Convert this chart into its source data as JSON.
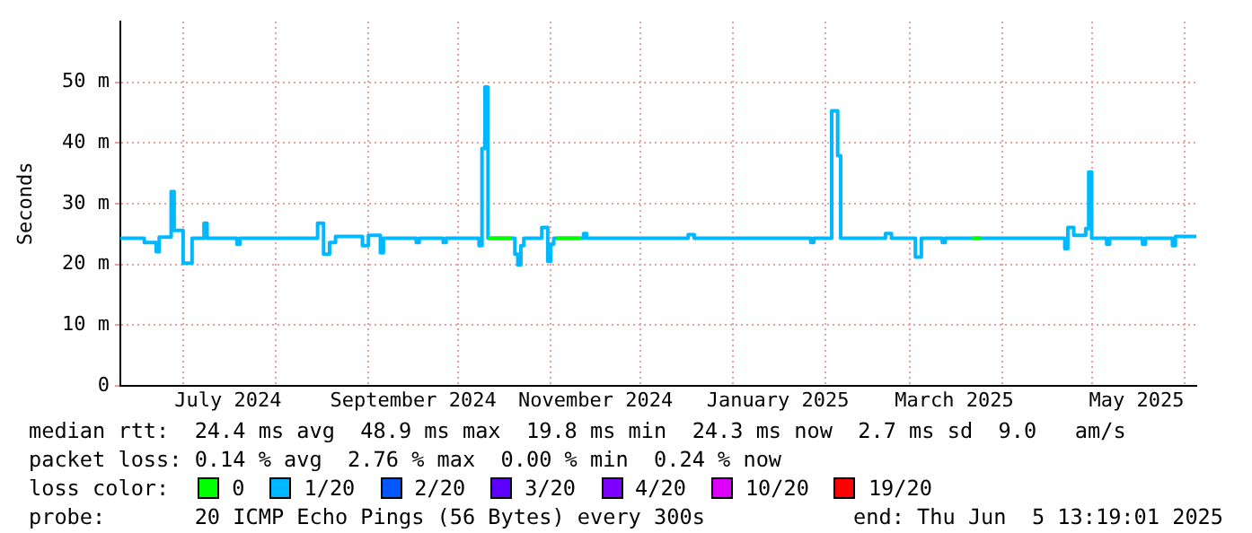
{
  "chart_data": {
    "type": "step",
    "ylabel": "Seconds",
    "legend_title": "loss color:",
    "legend": "bottom",
    "grid": true,
    "xlim": [
      "2024-06-10",
      "2025-06-05"
    ],
    "xticks": [
      {
        "value": "2024-07-01",
        "label": null
      },
      {
        "value": "2024-07-16",
        "label": "July 2024"
      },
      {
        "value": "2024-08-01",
        "label": null
      },
      {
        "value": "2024-09-01",
        "label": null
      },
      {
        "value": "2024-09-16",
        "label": "September 2024"
      },
      {
        "value": "2024-10-01",
        "label": null
      },
      {
        "value": "2024-11-01",
        "label": null
      },
      {
        "value": "2024-11-16",
        "label": "November 2024"
      },
      {
        "value": "2024-12-01",
        "label": null
      },
      {
        "value": "2025-01-01",
        "label": null
      },
      {
        "value": "2025-01-16",
        "label": "January 2025"
      },
      {
        "value": "2025-02-01",
        "label": null
      },
      {
        "value": "2025-03-01",
        "label": null
      },
      {
        "value": "2025-03-16",
        "label": "March 2025"
      },
      {
        "value": "2025-04-01",
        "label": null
      },
      {
        "value": "2025-05-01",
        "label": null
      },
      {
        "value": "2025-05-16",
        "label": "May 2025"
      },
      {
        "value": "2025-06-01",
        "label": null
      }
    ],
    "ylim": [
      0,
      60
    ],
    "yticks": [
      0,
      {
        "value": 10,
        "label": "10 m"
      },
      {
        "value": 20,
        "label": "20 m"
      },
      {
        "value": 30,
        "label": "30 m"
      },
      {
        "value": 40,
        "label": "40 m"
      },
      {
        "value": 50,
        "label": "50 m"
      }
    ],
    "x": [
      "2024-06-10",
      "2024-06-18",
      "2024-06-22",
      "2024-06-23",
      "2024-06-27",
      "2024-06-28",
      "2024-07-01",
      "2024-07-04",
      "2024-07-08",
      "2024-07-09",
      "2024-07-19",
      "2024-07-20",
      "2024-08-15",
      "2024-08-17",
      "2024-08-19",
      "2024-08-21",
      "2024-08-30",
      "2024-09-01",
      "2024-09-05",
      "2024-09-06",
      "2024-09-17",
      "2024-09-18",
      "2024-09-26",
      "2024-09-27",
      "2024-10-08",
      "2024-10-09",
      "2024-10-10",
      "2024-10-11",
      "2024-10-20",
      "2024-10-21",
      "2024-10-22",
      "2024-10-23",
      "2024-10-29",
      "2024-10-31",
      "2024-11-01",
      "2024-11-02",
      "2024-11-12",
      "2024-11-13",
      "2024-12-17",
      "2024-12-19",
      "2025-01-27",
      "2025-01-28",
      "2025-02-03",
      "2025-02-05",
      "2025-02-06",
      "2025-02-21",
      "2025-02-23",
      "2025-03-03",
      "2025-03-05",
      "2025-03-12",
      "2025-03-13",
      "2025-04-22",
      "2025-04-23",
      "2025-04-25",
      "2025-04-29",
      "2025-04-30",
      "2025-05-01",
      "2025-05-06",
      "2025-05-07",
      "2025-05-18",
      "2025-05-19",
      "2025-05-28",
      "2025-05-29",
      "2025-06-05"
    ],
    "series": [
      {
        "name": "0",
        "color": "#00ff00",
        "x": [
          "2024-10-11",
          "2024-10-19",
          "2024-10-27",
          "2024-11-03",
          "2024-11-11",
          "2025-01-10",
          "2025-03-22",
          "2025-03-25"
        ],
        "values": [
          24.3,
          24.3,
          null,
          24.3,
          24.3,
          null,
          24.3,
          24.3
        ]
      },
      {
        "name": "1/20",
        "color": "#00b8ff",
        "values": [
          24.3,
          23.6,
          22.1,
          24.5,
          32.0,
          25.6,
          20.2,
          24.3,
          26.8,
          24.3,
          23.3,
          24.3,
          26.8,
          21.7,
          23.6,
          24.6,
          23.1,
          24.8,
          21.9,
          24.3,
          23.6,
          24.3,
          23.6,
          24.3,
          23.1,
          39.1,
          49.2,
          24.3,
          21.7,
          19.9,
          23.1,
          24.3,
          26.1,
          20.5,
          23.3,
          24.3,
          25.1,
          24.3,
          24.9,
          24.3,
          23.6,
          24.3,
          45.3,
          37.9,
          24.3,
          25.1,
          24.3,
          21.2,
          24.3,
          23.6,
          24.3,
          22.6,
          26.1,
          24.8,
          25.9,
          35.2,
          24.3,
          23.3,
          24.3,
          23.3,
          24.3,
          23.1,
          24.6,
          24.6
        ]
      },
      {
        "name": "2/20",
        "color": "#0059ff",
        "values": [
          null,
          null,
          null,
          null,
          null,
          null,
          null,
          null,
          null,
          null,
          null,
          null,
          null,
          null,
          null,
          null,
          null,
          null,
          null,
          null,
          null,
          null,
          null,
          null,
          null,
          null,
          null,
          null,
          null,
          null,
          null,
          null,
          null,
          null,
          null,
          null,
          null,
          null,
          null,
          null,
          null,
          null,
          null,
          null,
          null,
          null,
          null,
          null,
          null,
          null,
          null,
          null,
          null,
          null,
          null,
          null,
          null,
          null,
          null,
          null,
          null,
          null,
          null,
          null
        ]
      },
      {
        "name": "3/20",
        "color": "#5e00ff",
        "values": [
          null,
          null,
          null,
          null,
          null,
          null,
          null,
          null,
          null,
          null,
          null,
          null,
          null,
          null,
          null,
          null,
          null,
          null,
          null,
          null,
          null,
          null,
          null,
          null,
          null,
          null,
          null,
          null,
          null,
          null,
          null,
          null,
          null,
          null,
          null,
          null,
          null,
          null,
          null,
          null,
          null,
          null,
          null,
          null,
          null,
          null,
          null,
          null,
          null,
          null,
          null,
          null,
          null,
          null,
          null,
          null,
          null,
          null,
          null,
          null,
          null,
          null,
          null,
          null
        ]
      },
      {
        "name": "4/20",
        "color": "#7e00ff",
        "values": [
          null,
          null,
          null,
          null,
          null,
          null,
          null,
          null,
          null,
          null,
          null,
          null,
          null,
          null,
          null,
          null,
          null,
          null,
          null,
          null,
          null,
          null,
          null,
          null,
          null,
          null,
          null,
          null,
          null,
          null,
          null,
          null,
          null,
          null,
          null,
          null,
          null,
          null,
          null,
          null,
          null,
          null,
          null,
          null,
          null,
          null,
          null,
          null,
          null,
          null,
          null,
          null,
          null,
          null,
          null,
          null,
          null,
          null,
          null,
          null,
          null,
          null,
          null,
          null
        ]
      },
      {
        "name": "10/20",
        "color": "#dd00ff",
        "values": [
          null,
          null,
          null,
          null,
          null,
          null,
          null,
          null,
          null,
          null,
          null,
          null,
          null,
          null,
          null,
          null,
          null,
          null,
          null,
          null,
          null,
          null,
          null,
          null,
          null,
          null,
          null,
          null,
          null,
          null,
          null,
          null,
          null,
          null,
          null,
          null,
          null,
          null,
          null,
          null,
          null,
          null,
          null,
          null,
          null,
          null,
          null,
          null,
          null,
          null,
          null,
          null,
          null,
          null,
          null,
          null,
          null,
          null,
          null,
          null,
          null,
          null,
          null,
          null
        ]
      },
      {
        "name": "19/20",
        "color": "#ff0000",
        "values": [
          null,
          null,
          null,
          null,
          null,
          null,
          null,
          null,
          null,
          null,
          null,
          null,
          null,
          null,
          null,
          null,
          null,
          null,
          null,
          null,
          null,
          null,
          null,
          null,
          null,
          null,
          null,
          null,
          null,
          null,
          null,
          null,
          null,
          null,
          null,
          null,
          null,
          null,
          null,
          null,
          null,
          null,
          null,
          null,
          null,
          null,
          null,
          null,
          null,
          null,
          null,
          null,
          null,
          null,
          null,
          null,
          null,
          null,
          null,
          null,
          null,
          null,
          null,
          null
        ]
      }
    ],
    "annotations": [
      "median rtt:  24.4 ms avg  48.9 ms max  19.8 ms min  24.3 ms now  2.7 ms sd  9.0   am/s",
      "packet loss: 0.14 % avg  2.76 % max  0.00 % min  0.24 % now",
      "probe:       20 ICMP Echo Pings (56 Bytes) every 300s",
      "end: Thu Jun  5 13:19:01 2025"
    ]
  }
}
